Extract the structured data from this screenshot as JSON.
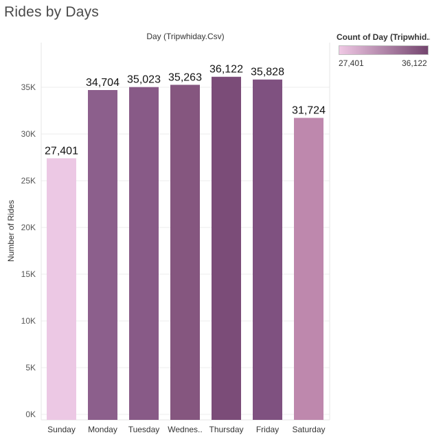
{
  "title": "Rides by Days",
  "legend": {
    "title": "Count of Day (Tripwhid..",
    "min_label": "27,401",
    "max_label": "36,122",
    "color_low": "#efc8e4",
    "color_high": "#74456f"
  },
  "chart_data": {
    "type": "bar",
    "x_header": "Day (Tripwhiday.Csv)",
    "ylabel": "Number of Rides",
    "categories": [
      "Sunday",
      "Monday",
      "Tuesday",
      "Wednes..",
      "Thursday",
      "Friday",
      "Saturday"
    ],
    "values": [
      27401,
      34704,
      35023,
      35263,
      36122,
      35828,
      31724
    ],
    "value_labels": [
      "27,401",
      "34,704",
      "35,023",
      "35,263",
      "36,122",
      "35,828",
      "31,724"
    ],
    "bar_colors": [
      "#ecc8e4",
      "#8c5f8c",
      "#885a87",
      "#85567f",
      "#7b4c78",
      "#7f5180",
      "#be88ad"
    ],
    "yticks": [
      0,
      5000,
      10000,
      15000,
      20000,
      25000,
      30000,
      35000
    ],
    "ytick_labels": [
      "0K",
      "5K",
      "10K",
      "15K",
      "20K",
      "25K",
      "30K",
      "35K"
    ],
    "ylim": [
      0,
      39000
    ],
    "grid": true
  }
}
